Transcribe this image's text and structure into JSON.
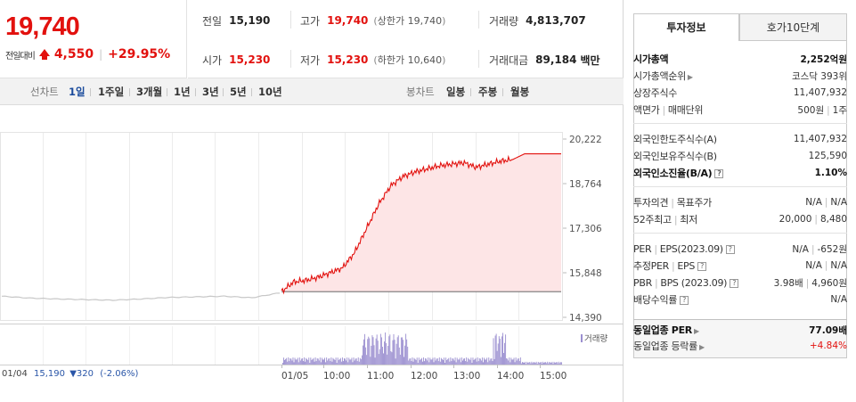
{
  "price": {
    "current": "19,740",
    "change_label": "전일대비",
    "change_value": "4,550",
    "change_pct": "+29.95%"
  },
  "stats": {
    "prev_close": {
      "label": "전일",
      "value": "15,190"
    },
    "high": {
      "label": "고가",
      "value": "19,740",
      "sub_label": "상한가",
      "sub_value": "19,740"
    },
    "volume": {
      "label": "거래량",
      "value": "4,813,707"
    },
    "open": {
      "label": "시가",
      "value": "15,230"
    },
    "low": {
      "label": "저가",
      "value": "15,230",
      "sub_label": "하한가",
      "sub_value": "10,640"
    },
    "amount": {
      "label": "거래대금",
      "value": "89,184",
      "unit": "백만"
    }
  },
  "toolbar": {
    "line_chart_label": "선차트",
    "periods": [
      "1일",
      "1주일",
      "3개월",
      "1년",
      "3년",
      "5년",
      "10년"
    ],
    "active_period": "1일",
    "candle_chart_label": "봉차트",
    "candles": [
      "일봉",
      "주봉",
      "월봉"
    ]
  },
  "chart_data": {
    "type": "line",
    "price_axis": {
      "ticks": [
        "20,222",
        "18,764",
        "17,306",
        "15,848",
        "14,390"
      ],
      "ylim": [
        14390,
        20222
      ]
    },
    "time_labels": [
      "01/04",
      "01/05",
      "10:00",
      "11:00",
      "12:00",
      "13:00",
      "14:00",
      "15:00"
    ],
    "prev_day": {
      "date": "01/04",
      "close_info": "15,190",
      "change": "320",
      "change_pct": "(-2.06%)",
      "x": [
        0,
        0.1,
        0.2,
        0.3,
        0.4,
        0.5,
        0.6,
        0.7,
        0.8,
        0.9,
        1.0
      ],
      "y": [
        15080,
        15020,
        14990,
        14970,
        14950,
        14990,
        15040,
        15060,
        15080,
        15030,
        15190
      ]
    },
    "today": {
      "date": "01/05",
      "x": [
        "09:00",
        "09:15",
        "09:30",
        "09:45",
        "10:00",
        "10:15",
        "10:30",
        "10:45",
        "11:00",
        "11:15",
        "11:30",
        "11:45",
        "12:00",
        "12:15",
        "12:30",
        "12:45",
        "13:00",
        "13:15",
        "13:30",
        "13:45",
        "14:00",
        "14:30",
        "15:00",
        "15:20"
      ],
      "y": [
        15230,
        15550,
        15600,
        15700,
        15850,
        16000,
        16500,
        17300,
        18100,
        18700,
        19000,
        19150,
        19250,
        19350,
        19400,
        19450,
        19300,
        19400,
        19500,
        19550,
        19740,
        19740,
        19740,
        19740
      ]
    },
    "volume_legend": "거래량",
    "grid": true
  },
  "tabs": {
    "invest_info": "투자정보",
    "orderbook": "호가10단계"
  },
  "info": {
    "market_cap": {
      "label": "시가총액",
      "value": "2,252억원"
    },
    "market_cap_rank": {
      "label": "시가총액순위",
      "value": "코스닥 393위"
    },
    "shares": {
      "label": "상장주식수",
      "value": "11,407,932"
    },
    "par_label": "액면가",
    "unit_label": "매매단위",
    "par_value": "500원",
    "unit_value": "1주",
    "foreign_limit": {
      "label": "외국인한도주식수(A)",
      "value": "11,407,932"
    },
    "foreign_hold": {
      "label": "외국인보유주식수(B)",
      "value": "125,590"
    },
    "foreign_ratio": {
      "label": "외국인소진율(B/A)",
      "value": "1.10%"
    },
    "opinion_label": "투자의견",
    "target_label": "목표주가",
    "opinion_value": "N/A",
    "target_value": "N/A",
    "high52_label": "52주최고",
    "low52_label": "최저",
    "high52_value": "20,000",
    "low52_value": "8,480",
    "per_label": "PER",
    "eps_label": "EPS(2023.09)",
    "per_value": "N/A",
    "eps_value": "-652원",
    "est_per_label": "추정PER",
    "est_eps_label": "EPS",
    "est_per_value": "N/A",
    "est_eps_value": "N/A",
    "pbr_label": "PBR",
    "bps_label": "BPS (2023.09)",
    "pbr_value": "3.98배",
    "bps_value": "4,960원",
    "dividend": {
      "label": "배당수익률",
      "value": "N/A"
    },
    "sector_per": {
      "label": "동일업종 PER",
      "value": "77.09배"
    },
    "sector_change": {
      "label": "동일업종 등락률",
      "value": "+4.84%"
    }
  }
}
